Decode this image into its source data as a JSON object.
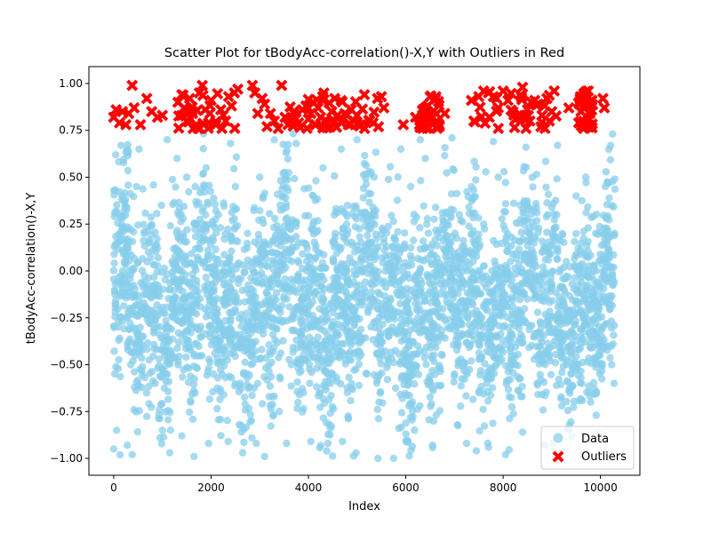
{
  "chart_data": {
    "type": "scatter",
    "title": "Scatter Plot for tBodyAcc-correlation()-X,Y with Outliers in Red",
    "xlabel": "Index",
    "ylabel": "tBodyAcc-correlation()-X,Y",
    "xlim": [
      -510,
      10810
    ],
    "ylim": [
      -1.09,
      1.09
    ],
    "x_ticks": [
      0,
      2000,
      4000,
      6000,
      8000,
      10000
    ],
    "x_tick_labels": [
      "0",
      "2000",
      "4000",
      "6000",
      "8000",
      "10000"
    ],
    "y_ticks": [
      -1.0,
      -0.75,
      -0.5,
      -0.25,
      0.0,
      0.25,
      0.5,
      0.75,
      1.0
    ],
    "y_tick_labels": [
      "−1.00",
      "−0.75",
      "−0.50",
      "−0.25",
      "0.00",
      "0.25",
      "0.50",
      "0.75",
      "1.00"
    ],
    "grid": false,
    "legend_position": "lower-right",
    "series": [
      {
        "name": "Data",
        "marker": "circle",
        "color": "#87CEEB",
        "count": 10299,
        "index_range": [
          0,
          10298
        ],
        "value_range": [
          -1.0,
          0.74
        ],
        "bulk_range": [
          -0.75,
          0.6
        ],
        "points": [
          [
            0,
            -0.95
          ],
          [
            60,
            -0.85
          ],
          [
            130,
            -0.98
          ],
          [
            280,
            -0.93
          ],
          [
            380,
            -0.98
          ],
          [
            420,
            -0.74
          ],
          [
            950,
            -0.89
          ],
          [
            1150,
            -0.97
          ],
          [
            1400,
            -0.88
          ],
          [
            1650,
            -0.99
          ],
          [
            1950,
            -0.92
          ],
          [
            2350,
            -0.91
          ],
          [
            2650,
            -0.97
          ],
          [
            2930,
            -0.92
          ],
          [
            3100,
            -0.99
          ],
          [
            3550,
            -0.92
          ],
          [
            4050,
            -0.91
          ],
          [
            4400,
            -0.92
          ],
          [
            4700,
            -0.91
          ],
          [
            4980,
            -0.97
          ],
          [
            5430,
            -1.0
          ],
          [
            5750,
            -1.0
          ],
          [
            6180,
            -0.85
          ],
          [
            6550,
            -0.93
          ],
          [
            7250,
            -0.92
          ],
          [
            7450,
            -0.96
          ],
          [
            7700,
            -0.94
          ],
          [
            8050,
            -0.98
          ],
          [
            8400,
            -0.86
          ],
          [
            8850,
            -0.93
          ],
          [
            9020,
            -0.92
          ],
          [
            9620,
            -0.98
          ],
          [
            9950,
            -0.86
          ],
          [
            40,
            0.62
          ],
          [
            150,
            0.67
          ],
          [
            300,
            0.64
          ],
          [
            520,
            0.65
          ],
          [
            1100,
            0.7
          ],
          [
            1300,
            0.6
          ],
          [
            2400,
            0.68
          ],
          [
            3300,
            0.7
          ],
          [
            3750,
            0.68
          ],
          [
            5000,
            0.7
          ],
          [
            5900,
            0.65
          ],
          [
            6300,
            0.7
          ],
          [
            6950,
            0.71
          ],
          [
            7800,
            0.69
          ],
          [
            9120,
            0.67
          ],
          [
            10250,
            0.73
          ],
          [
            20,
            0.31
          ],
          [
            90,
            -0.3
          ],
          [
            200,
            0.1
          ],
          [
            350,
            -0.5
          ],
          [
            470,
            0.45
          ],
          [
            600,
            -0.2
          ],
          [
            720,
            0.15
          ],
          [
            850,
            -0.6
          ],
          [
            980,
            0.35
          ],
          [
            1050,
            -0.45
          ],
          [
            1200,
            0.05
          ],
          [
            1350,
            -0.1
          ],
          [
            1500,
            0.5
          ],
          [
            1580,
            -0.7
          ],
          [
            1700,
            0.25
          ],
          [
            1800,
            -0.35
          ],
          [
            1900,
            0.55
          ],
          [
            2050,
            -0.55
          ],
          [
            2150,
            0.3
          ],
          [
            2250,
            -0.15
          ],
          [
            2500,
            0.45
          ],
          [
            2600,
            -0.6
          ],
          [
            2750,
            0.2
          ],
          [
            2850,
            -0.4
          ],
          [
            3000,
            0.5
          ],
          [
            3150,
            -0.25
          ],
          [
            3250,
            0.1
          ],
          [
            3400,
            -0.75
          ],
          [
            3480,
            0.4
          ],
          [
            3650,
            -0.5
          ],
          [
            3800,
            0.15
          ],
          [
            3900,
            -0.65
          ],
          [
            4100,
            0.4
          ],
          [
            4200,
            -0.3
          ],
          [
            4300,
            0.55
          ],
          [
            4450,
            -0.6
          ],
          [
            4550,
            0.2
          ],
          [
            4650,
            -0.45
          ],
          [
            4800,
            0.35
          ],
          [
            4900,
            -0.2
          ],
          [
            5100,
            0.0
          ],
          [
            5200,
            -0.55
          ],
          [
            5300,
            0.3
          ],
          [
            5450,
            -0.7
          ],
          [
            5550,
            0.15
          ],
          [
            5650,
            -0.35
          ],
          [
            5800,
            0.05
          ],
          [
            6000,
            -0.5
          ],
          [
            6100,
            0.45
          ],
          [
            6250,
            -0.25
          ],
          [
            6400,
            0.6
          ],
          [
            6500,
            -0.6
          ],
          [
            6650,
            0.2
          ],
          [
            6750,
            -0.45
          ],
          [
            6850,
            0.1
          ],
          [
            7000,
            -0.55
          ],
          [
            7100,
            0.3
          ],
          [
            7200,
            -0.2
          ],
          [
            7350,
            0.45
          ],
          [
            7500,
            -0.65
          ],
          [
            7600,
            0.25
          ],
          [
            7750,
            -0.4
          ],
          [
            7900,
            0.5
          ],
          [
            8000,
            -0.3
          ],
          [
            8150,
            0.05
          ],
          [
            8250,
            -0.5
          ],
          [
            8350,
            0.35
          ],
          [
            8500,
            -0.15
          ],
          [
            8600,
            0.5
          ],
          [
            8700,
            -0.6
          ],
          [
            8800,
            0.1
          ],
          [
            8950,
            -0.45
          ],
          [
            9100,
            0.3
          ],
          [
            9200,
            -0.25
          ],
          [
            9300,
            0.05
          ],
          [
            9400,
            -0.55
          ],
          [
            9500,
            0.4
          ],
          [
            9600,
            -0.35
          ],
          [
            9700,
            0.5
          ],
          [
            9800,
            -0.7
          ],
          [
            9900,
            0.2
          ],
          [
            10000,
            -0.5
          ],
          [
            10100,
            0.45
          ],
          [
            10200,
            -0.15
          ],
          [
            10280,
            -0.6
          ]
        ]
      },
      {
        "name": "Outliers",
        "marker": "X",
        "color": "#FF0000",
        "count": 388,
        "value_range": [
          0.75,
          1.0
        ],
        "points": [
          [
            0,
            0.82
          ],
          [
            50,
            0.86
          ],
          [
            120,
            0.79
          ],
          [
            180,
            0.85
          ],
          [
            250,
            0.78
          ],
          [
            310,
            0.84
          ],
          [
            380,
            0.99
          ],
          [
            420,
            0.87
          ],
          [
            550,
            0.78
          ],
          [
            680,
            0.92
          ],
          [
            780,
            0.85
          ],
          [
            900,
            0.82
          ],
          [
            1000,
            0.83
          ],
          [
            1320,
            0.9
          ],
          [
            1400,
            0.94
          ],
          [
            1450,
            0.87
          ],
          [
            1500,
            0.8
          ],
          [
            1560,
            0.92
          ],
          [
            1620,
            0.84
          ],
          [
            1700,
            0.78
          ],
          [
            1760,
            0.95
          ],
          [
            1820,
            0.99
          ],
          [
            1880,
            0.86
          ],
          [
            1950,
            0.79
          ],
          [
            2000,
            0.91
          ],
          [
            2100,
            0.78
          ],
          [
            2200,
            0.86
          ],
          [
            2250,
            0.83
          ],
          [
            2300,
            0.8
          ],
          [
            2360,
            0.93
          ],
          [
            2420,
            0.88
          ],
          [
            2480,
            0.95
          ],
          [
            2550,
            0.97
          ],
          [
            2850,
            0.99
          ],
          [
            2900,
            0.95
          ],
          [
            2960,
            0.84
          ],
          [
            3050,
            0.92
          ],
          [
            3100,
            0.89
          ],
          [
            3150,
            0.77
          ],
          [
            3220,
            0.84
          ],
          [
            3300,
            0.8
          ],
          [
            3380,
            0.76
          ],
          [
            3450,
            0.99
          ],
          [
            3520,
            0.82
          ],
          [
            3580,
            0.78
          ],
          [
            3700,
            0.85
          ],
          [
            3800,
            0.79
          ],
          [
            3880,
            0.86
          ],
          [
            3950,
            0.88
          ],
          [
            4000,
            0.81
          ],
          [
            4050,
            0.84
          ],
          [
            4100,
            0.9
          ],
          [
            4150,
            0.78
          ],
          [
            4200,
            0.87
          ],
          [
            4250,
            0.82
          ],
          [
            4300,
            0.91
          ],
          [
            4350,
            0.8
          ],
          [
            4420,
            0.79
          ],
          [
            4480,
            0.85
          ],
          [
            4540,
            0.92
          ],
          [
            4600,
            0.83
          ],
          [
            4680,
            0.79
          ],
          [
            4750,
            0.84
          ],
          [
            4820,
            0.78
          ],
          [
            4880,
            0.86
          ],
          [
            4940,
            0.8
          ],
          [
            5000,
            0.83
          ],
          [
            5080,
            0.78
          ],
          [
            5150,
            0.94
          ],
          [
            5250,
            0.8
          ],
          [
            5330,
            0.79
          ],
          [
            5420,
            0.92
          ],
          [
            5500,
            0.93
          ],
          [
            5550,
            0.87
          ],
          [
            5950,
            0.78
          ],
          [
            6200,
            0.82
          ],
          [
            6280,
            0.78
          ],
          [
            6350,
            0.86
          ],
          [
            6400,
            0.87
          ],
          [
            6450,
            0.88
          ],
          [
            6500,
            0.93
          ],
          [
            6560,
            0.82
          ],
          [
            6620,
            0.93
          ],
          [
            6800,
            0.84
          ],
          [
            7350,
            0.91
          ],
          [
            7400,
            0.8
          ],
          [
            7500,
            0.93
          ],
          [
            7600,
            0.96
          ],
          [
            7700,
            0.95
          ],
          [
            7800,
            0.93
          ],
          [
            7900,
            0.87
          ],
          [
            8000,
            0.96
          ],
          [
            8100,
            0.91
          ],
          [
            8200,
            0.85
          ],
          [
            8300,
            0.82
          ],
          [
            8400,
            0.98
          ],
          [
            8500,
            0.86
          ],
          [
            8550,
            0.8
          ],
          [
            8650,
            0.91
          ],
          [
            8720,
            0.89
          ],
          [
            8800,
            0.83
          ],
          [
            8850,
            0.88
          ],
          [
            8900,
            0.92
          ],
          [
            8950,
            0.8
          ],
          [
            9000,
            0.85
          ],
          [
            9050,
            0.96
          ],
          [
            9350,
            0.87
          ],
          [
            9600,
            0.85
          ],
          [
            9700,
            0.78
          ],
          [
            9750,
            0.96
          ],
          [
            9800,
            0.88
          ],
          [
            10050,
            0.92
          ],
          [
            10080,
            0.87
          ]
        ]
      }
    ]
  }
}
